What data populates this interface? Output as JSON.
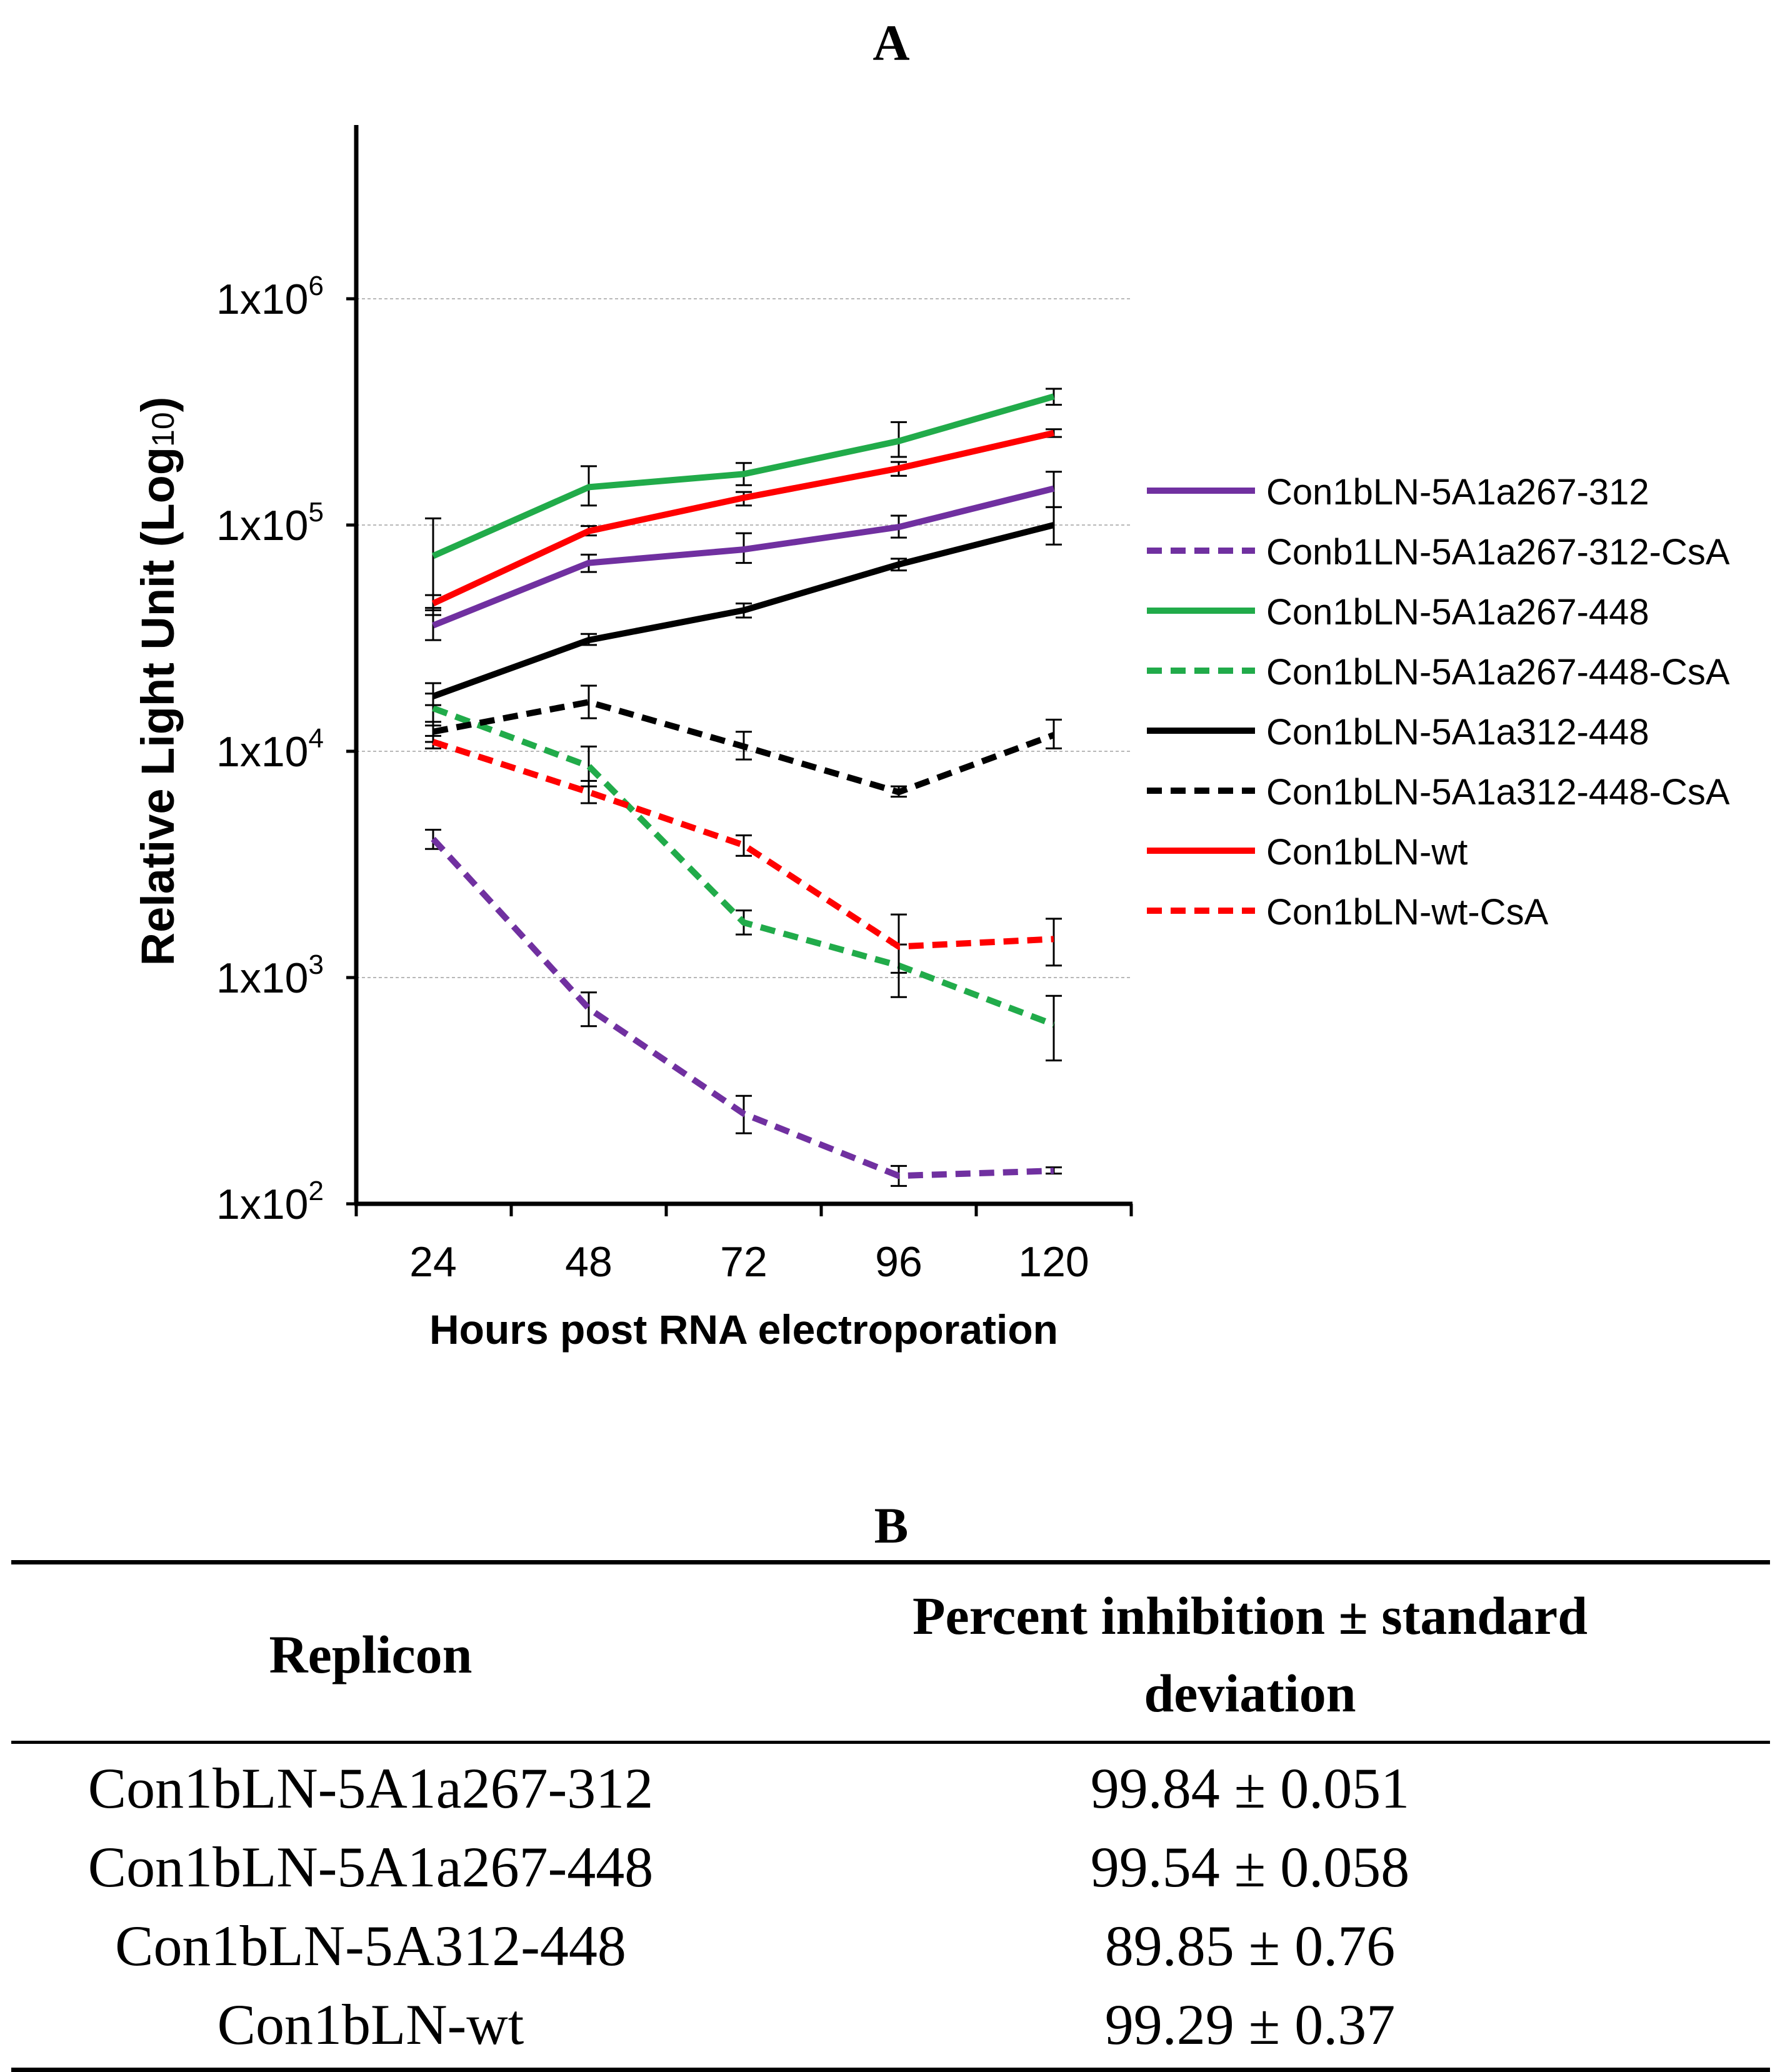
{
  "panel_a_label": "A",
  "panel_b_label": "B",
  "chart_data": {
    "type": "line",
    "title": "",
    "xlabel": "Hours post RNA electroporation",
    "ylabel": "Relative Light Unit (Log10)",
    "ylabel_main": "Relative Light Unit (Log",
    "ylabel_sub": "10",
    "ylabel_end": ")",
    "y_scale": "log",
    "ylim": [
      100,
      5000000
    ],
    "x": [
      24,
      48,
      72,
      96,
      120
    ],
    "x_tick_labels": [
      "24",
      "48",
      "72",
      "96",
      "120"
    ],
    "y_ticks": [
      {
        "value": 100,
        "base": "1x10",
        "exp": "2"
      },
      {
        "value": 1000,
        "base": "1x10",
        "exp": "3"
      },
      {
        "value": 10000,
        "base": "1x10",
        "exp": "4"
      },
      {
        "value": 100000,
        "base": "1x10",
        "exp": "5"
      },
      {
        "value": 1000000,
        "base": "1x10",
        "exp": "6"
      }
    ],
    "grid": true,
    "legend_position": "right",
    "series": [
      {
        "name": "Con1bLN-5A1a267-312",
        "color": "#7030A0",
        "dashed": false,
        "values": [
          36000,
          68000,
          78000,
          98000,
          145000
        ],
        "err_low": [
          31000,
          62000,
          68000,
          88000,
          120000
        ],
        "err_high": [
          42000,
          74000,
          92000,
          110000,
          172000
        ]
      },
      {
        "name": "Conb1LN-5A1a267-312-CsA",
        "color": "#7030A0",
        "dashed": true,
        "values": [
          4100,
          730,
          250,
          133,
          140
        ],
        "err_low": [
          3700,
          610,
          205,
          120,
          136
        ],
        "err_high": [
          4500,
          860,
          300,
          147,
          145
        ]
      },
      {
        "name": "Con1bLN-5A1a267-448",
        "color": "#21AB4A",
        "dashed": false,
        "values": [
          73000,
          147000,
          168000,
          235000,
          370000
        ],
        "err_low": [
          43000,
          122000,
          150000,
          200000,
          340000
        ],
        "err_high": [
          107000,
          182000,
          188000,
          285000,
          400000
        ]
      },
      {
        "name": "Con1bLN-5A1a267-448-CsA",
        "color": "#21AB4A",
        "dashed": true,
        "values": [
          15500,
          8600,
          1750,
          1130,
          620
        ],
        "err_low": [
          13000,
          7000,
          1550,
          820,
          430
        ],
        "err_high": [
          18000,
          10500,
          1980,
          1400,
          830
        ]
      },
      {
        "name": "Con1bLN-5A1a312-448",
        "color": "#000000",
        "dashed": false,
        "values": [
          17500,
          31000,
          42000,
          67000,
          100000
        ],
        "err_low": [
          16000,
          29500,
          39000,
          63000,
          82000
        ],
        "err_high": [
          20000,
          33000,
          45000,
          71000,
          120000
        ]
      },
      {
        "name": "Con1bLN-5A1a312-448-CsA",
        "color": "#000000",
        "dashed": true,
        "values": [
          12200,
          16500,
          10500,
          6600,
          11800
        ],
        "err_low": [
          11000,
          14000,
          9200,
          6300,
          10300
        ],
        "err_high": [
          13500,
          19500,
          12200,
          7000,
          13800
        ]
      },
      {
        "name": "Con1bLN-wt",
        "color": "#FF0000",
        "dashed": false,
        "values": [
          45000,
          94000,
          132000,
          178000,
          255000
        ],
        "err_low": [
          40000,
          90000,
          122000,
          165000,
          245000
        ],
        "err_high": [
          49000,
          99000,
          140000,
          190000,
          265000
        ]
      },
      {
        "name": "Con1bLN-wt-CsA",
        "color": "#FF0000",
        "dashed": true,
        "values": [
          11000,
          6600,
          3850,
          1370,
          1480
        ],
        "err_low": [
          10300,
          5900,
          3450,
          1050,
          1130
        ],
        "err_high": [
          11700,
          7400,
          4250,
          1900,
          1820
        ]
      }
    ]
  },
  "table": {
    "headers": {
      "replicon": "Replicon",
      "inhibition_line1": "Percent inhibition ± standard",
      "inhibition_line2": "deviation"
    },
    "rows": [
      {
        "replicon": "Con1bLN-5A1a267-312",
        "inhibition": "99.84 ± 0.051"
      },
      {
        "replicon": "Con1bLN-5A1a267-448",
        "inhibition": "99.54 ± 0.058"
      },
      {
        "replicon": "Con1bLN-5A312-448",
        "inhibition": "89.85 ± 0.76"
      },
      {
        "replicon": "Con1bLN-wt",
        "inhibition": "99.29 ± 0.37"
      }
    ]
  }
}
